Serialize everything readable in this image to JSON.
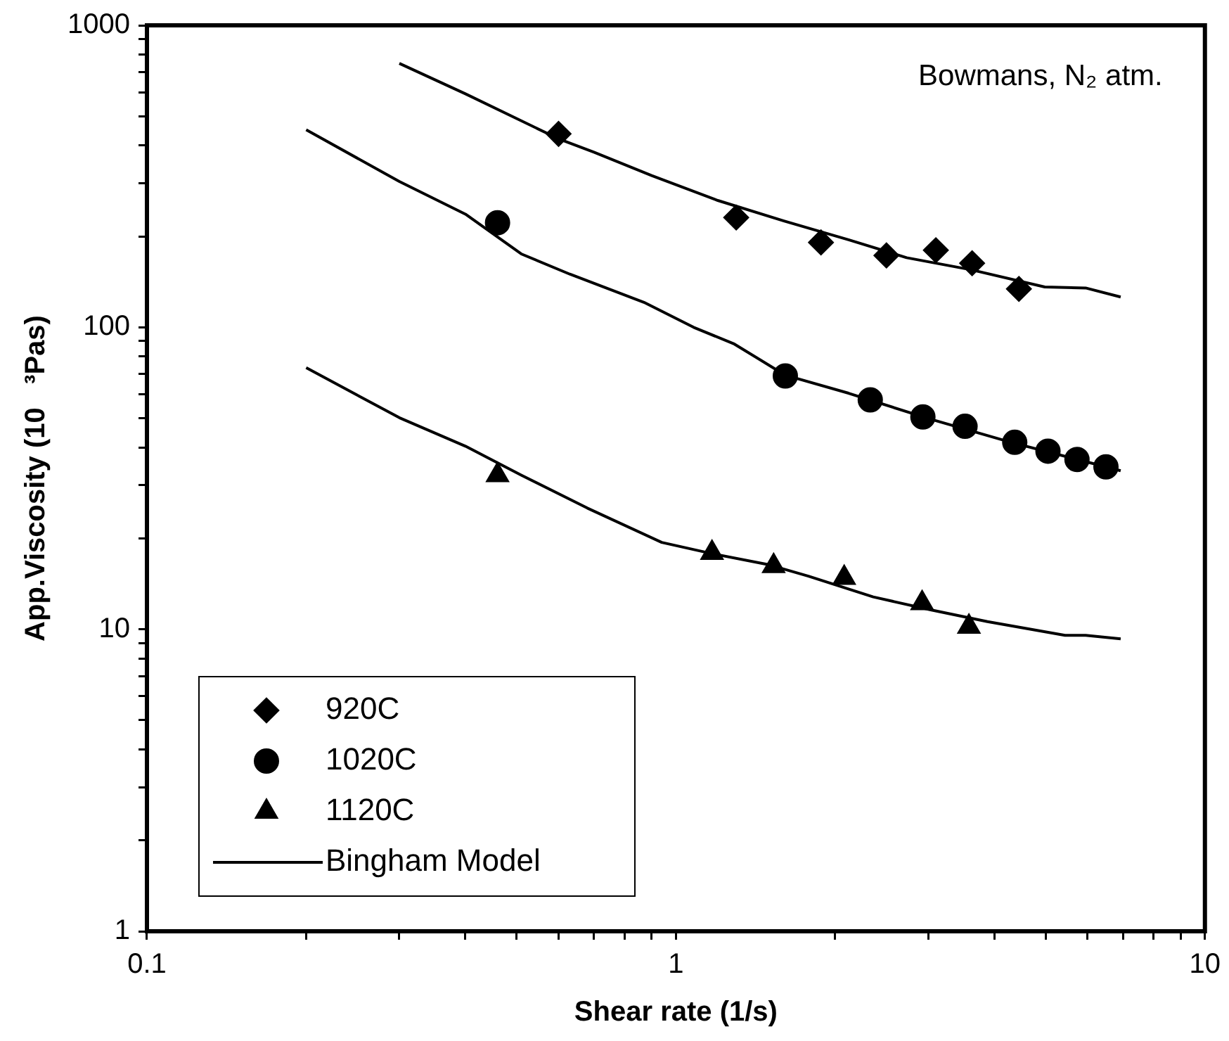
{
  "chart_data": {
    "type": "scatter",
    "xlabel": "Shear rate (1/s)",
    "ylabel": "App.Viscosity (10   ³Pas)",
    "annotations": [
      "Bowmans, N₂ atm."
    ],
    "log": "xy",
    "grid": false,
    "legend": "bottom left",
    "xlim": [
      0.1,
      10
    ],
    "xticks": [
      0.1,
      {
        "value": 0.2,
        "label": null
      },
      {
        "value": 0.3,
        "label": null
      },
      {
        "value": 0.4,
        "label": null
      },
      {
        "value": 0.5,
        "label": null
      },
      {
        "value": 0.6,
        "label": null
      },
      {
        "value": 0.7,
        "label": null
      },
      {
        "value": 0.8,
        "label": null
      },
      {
        "value": 0.9,
        "label": null
      },
      1,
      {
        "value": 2,
        "label": null
      },
      {
        "value": 3,
        "label": null
      },
      {
        "value": 4,
        "label": null
      },
      {
        "value": 5,
        "label": null
      },
      {
        "value": 6,
        "label": null
      },
      {
        "value": 7,
        "label": null
      },
      {
        "value": 8,
        "label": null
      },
      {
        "value": 9,
        "label": null
      },
      10
    ],
    "ylim": [
      1,
      1000
    ],
    "yticks": [
      1,
      {
        "value": 2,
        "label": null
      },
      {
        "value": 3,
        "label": null
      },
      {
        "value": 4,
        "label": null
      },
      {
        "value": 5,
        "label": null
      },
      {
        "value": 6,
        "label": null
      },
      {
        "value": 7,
        "label": null
      },
      {
        "value": 8,
        "label": null
      },
      {
        "value": 9,
        "label": null
      },
      10,
      {
        "value": 20,
        "label": null
      },
      {
        "value": 30,
        "label": null
      },
      {
        "value": 40,
        "label": null
      },
      {
        "value": 50,
        "label": null
      },
      {
        "value": 60,
        "label": null
      },
      {
        "value": 70,
        "label": null
      },
      {
        "value": 80,
        "label": null
      },
      {
        "value": 90,
        "label": null
      },
      100,
      {
        "value": 200,
        "label": null
      },
      {
        "value": 300,
        "label": null
      },
      {
        "value": 400,
        "label": null
      },
      {
        "value": 500,
        "label": null
      },
      {
        "value": 600,
        "label": null
      },
      {
        "value": 700,
        "label": null
      },
      {
        "value": 800,
        "label": null
      },
      {
        "value": 900,
        "label": null
      },
      1000
    ],
    "series": [
      {
        "name": "920C",
        "marker": "diamond",
        "color": "#000000",
        "x": [
          0.6,
          1.3,
          1.88,
          2.5,
          3.1,
          3.63,
          4.45
        ],
        "values": [
          437,
          231,
          191,
          173,
          180,
          163,
          134
        ]
      },
      {
        "name": "1020C",
        "marker": "circle",
        "color": "#000000",
        "x": [
          0.46,
          1.61,
          2.33,
          2.93,
          3.52,
          4.37,
          5.05,
          5.73,
          6.5
        ],
        "values": [
          222,
          69,
          57.5,
          50.5,
          47,
          41.6,
          38.9,
          36.5,
          34.5
        ]
      },
      {
        "name": "1120C",
        "marker": "triangle",
        "color": "#000000",
        "x": [
          0.46,
          1.17,
          1.53,
          2.08,
          2.92,
          3.58
        ],
        "values": [
          32.4,
          17.9,
          16.2,
          14.8,
          12.2,
          10.2
        ]
      },
      {
        "name": "Bingham Model",
        "type": "line",
        "marker": "none",
        "line_style": "solid",
        "color": "#000000",
        "x": [
          0.3,
          0.4,
          0.6,
          0.7,
          0.9,
          1.2,
          1.6,
          2.12,
          2.73,
          3.62,
          4.98,
          5.95,
          6.93
        ],
        "values": [
          748,
          593,
          421,
          380,
          318,
          263,
          225,
          195,
          170,
          155,
          136,
          135,
          126
        ]
      },
      {
        "type": "line",
        "marker": "none",
        "line_style": "solid",
        "color": "#000000",
        "x": [
          0.2,
          0.3,
          0.4,
          0.51,
          0.63,
          0.87,
          1.08,
          1.29,
          1.61,
          2.12,
          3.02,
          4.3,
          6.5,
          6.93
        ],
        "values": [
          451,
          304,
          237,
          175,
          150,
          121,
          100,
          88,
          69.4,
          60.5,
          49.7,
          41.6,
          34.5,
          33.5
        ]
      },
      {
        "type": "line",
        "marker": "none",
        "line_style": "solid",
        "color": "#000000",
        "x": [
          0.2,
          0.3,
          0.4,
          0.51,
          0.68,
          0.94,
          1.17,
          1.49,
          1.78,
          2.36,
          3.03,
          3.88,
          5.44,
          5.95,
          6.93
        ],
        "values": [
          73.5,
          50.2,
          40.4,
          32.4,
          25.2,
          19.4,
          17.8,
          16.4,
          15,
          12.8,
          11.6,
          10.6,
          9.55,
          9.55,
          9.3
        ]
      }
    ]
  }
}
